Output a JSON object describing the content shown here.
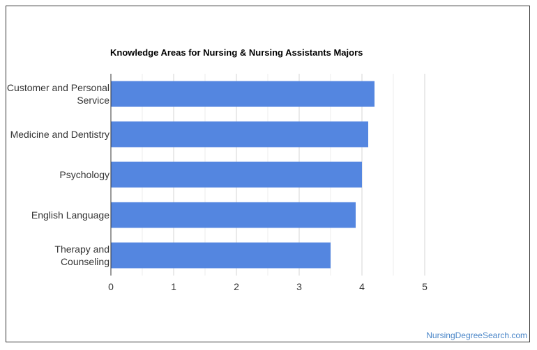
{
  "chart_data": {
    "type": "bar",
    "orientation": "horizontal",
    "title": "Knowledge Areas for Nursing & Nursing Assistants Majors",
    "categories": [
      [
        "Customer and Personal",
        "Service"
      ],
      [
        "Medicine and Dentistry"
      ],
      [
        "Psychology"
      ],
      [
        "English Language"
      ],
      [
        "Therapy and",
        "Counseling"
      ]
    ],
    "values": [
      4.2,
      4.1,
      4.0,
      3.9,
      3.5
    ],
    "xlim": [
      0,
      5
    ],
    "xticks": [
      "0",
      "1",
      "2",
      "3",
      "4",
      "5"
    ],
    "grid": true,
    "bar_color": "#5486e0"
  },
  "watermark": "NursingDegreeSearch.com",
  "colors": {
    "watermark": "#4a86c8",
    "grid": "#dddddd",
    "axis": "#333333"
  }
}
